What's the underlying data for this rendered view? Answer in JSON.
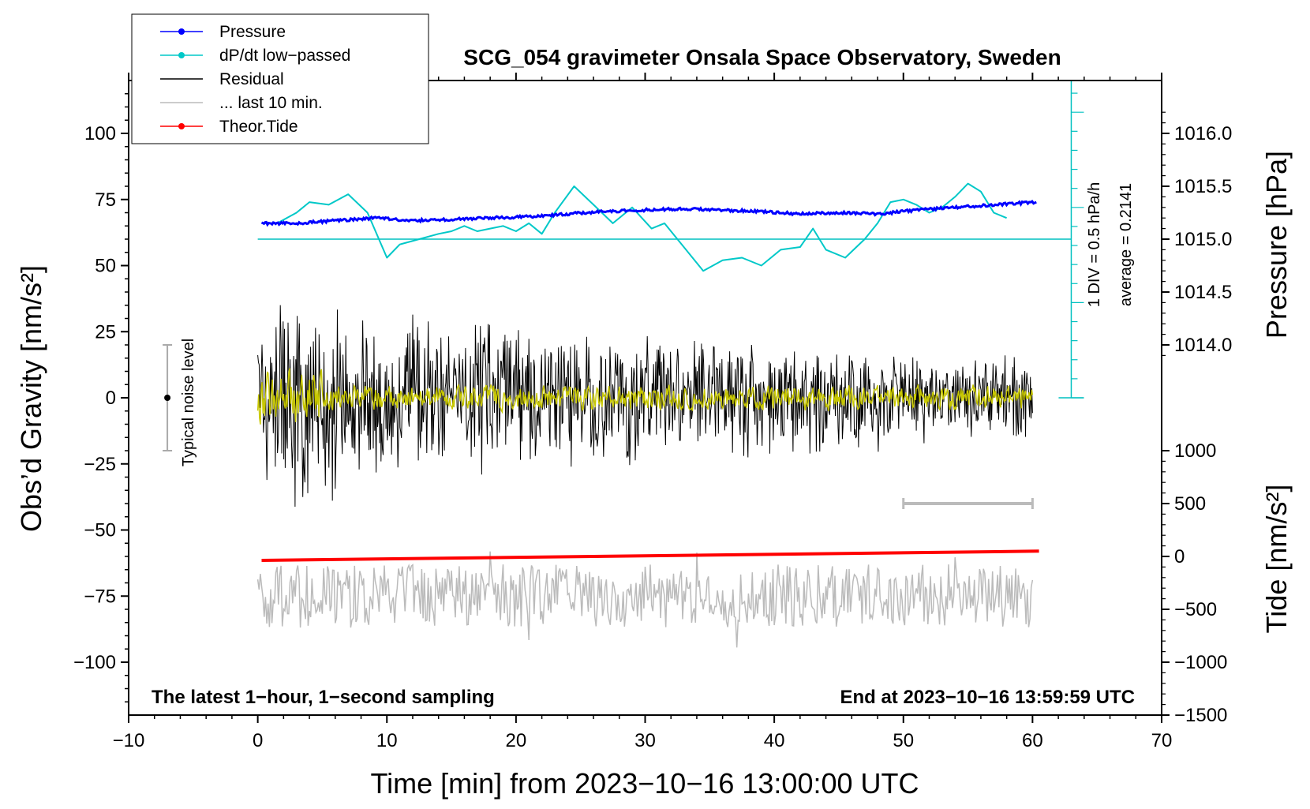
{
  "chart_data": {
    "type": "line",
    "title": "SCG_054 gravimeter Onsala Space Observatory, Sweden",
    "xlabel": "Time [min] from 2023−10−16 13:00:00 UTC",
    "ylabel_left": "Obs’d Gravity [nm/s²]",
    "ylabel_right_top": "Pressure [hPa]",
    "ylabel_right_bottom": "Tide [nm/s²]",
    "xlim": [
      -10,
      70
    ],
    "ylim_left": [
      -120,
      120
    ],
    "x_ticks": [
      -10,
      0,
      10,
      20,
      30,
      40,
      50,
      60,
      70
    ],
    "x_tick_labels": [
      "−10",
      "0",
      "10",
      "20",
      "30",
      "40",
      "50",
      "60",
      "70"
    ],
    "y_left_ticks": [
      100,
      75,
      50,
      25,
      0,
      -25,
      -50,
      -75,
      -100
    ],
    "y_left_tick_labels": [
      "100",
      "75",
      "50",
      "25",
      "0",
      "−25",
      "−50",
      "−75",
      "−100"
    ],
    "pressure_ticks": [
      1016.0,
      1015.5,
      1015.0,
      1014.5,
      1014.0
    ],
    "pressure_tick_labels": [
      "1016.0",
      "1015.5",
      "1015.0",
      "1014.5",
      "1014.0"
    ],
    "pressure_axis_map": {
      "value_a": 1015.0,
      "gravity_a": 60,
      "value_b": 1016.0,
      "gravity_b": 100
    },
    "tide_ticks": [
      1000,
      500,
      0,
      -500,
      -1000,
      -1500
    ],
    "tide_tick_labels": [
      "1000",
      "500",
      "0",
      "−500",
      "−1000",
      "−1500"
    ],
    "tide_axis_map": {
      "value_a": 0,
      "gravity_a": -60,
      "value_b": 1000,
      "gravity_b": -20
    },
    "legend_position": "top-left",
    "legend": [
      {
        "label": "Pressure",
        "color": "#0000ff",
        "marker": "dot"
      },
      {
        "label": "dP/dt low−passed",
        "color": "#00c8c8",
        "marker": "dot"
      },
      {
        "label": "Residual",
        "color": "#000000",
        "marker": "none"
      },
      {
        "label": "... last 10 min.",
        "color": "#bbbbbb",
        "marker": "none"
      },
      {
        "label": "Theor.Tide",
        "color": "#ff0000",
        "marker": "dot"
      }
    ],
    "annotations": {
      "left_info": "The latest 1−hour, 1−second sampling",
      "right_info": "End at 2023−10−16 13:59:59 UTC",
      "noise_label": "Typical noise level",
      "div_label": "1 DIV = 0.5 hPa/h",
      "average_label": "average = 0.2141"
    },
    "noise_bar": {
      "x": -7,
      "center": 0,
      "half_range": 20
    },
    "dpdt_scale_bar": {
      "x": 63,
      "ymin": 0,
      "ymax": 120,
      "baseline": 60,
      "div_gravity": 7.2
    },
    "last10_bar": {
      "x_start": 50,
      "x_end": 60,
      "y": -40
    },
    "series": [
      {
        "name": "Pressure",
        "color": "#0000ff",
        "units": "gravity-scaled",
        "x": [
          0.3,
          3,
          6,
          9,
          12,
          15,
          18,
          21,
          24,
          27,
          30,
          33,
          36,
          39,
          42,
          45,
          48,
          51,
          54,
          57,
          60.3
        ],
        "values": [
          66,
          66,
          67,
          68,
          67,
          67.5,
          68,
          68.5,
          69.5,
          70.5,
          71,
          71.5,
          71,
          70.5,
          69.5,
          70,
          69.5,
          71,
          72,
          73,
          74
        ]
      },
      {
        "name": "dP/dt low-passed",
        "color": "#00c8c8",
        "units": "gravity-scaled",
        "x": [
          0.3,
          1.5,
          3,
          4,
          5.5,
          7,
          8.5,
          10,
          11,
          12.5,
          14,
          15,
          16,
          17,
          18,
          19,
          20,
          21,
          22,
          23,
          24.5,
          26,
          27.5,
          29,
          30.5,
          31.5,
          32.5,
          34.5,
          36,
          37.5,
          39,
          40.5,
          42,
          43,
          44,
          45.5,
          47,
          48,
          49,
          50,
          51,
          52,
          53,
          54,
          55,
          56,
          57,
          58
        ],
        "values": [
          66,
          66,
          70,
          74,
          73,
          77,
          70,
          53,
          58,
          60,
          62,
          63,
          65,
          63,
          64,
          65,
          63,
          66,
          62,
          70,
          80,
          73,
          66,
          72,
          64,
          66,
          60,
          48,
          52,
          53,
          50,
          56,
          57,
          64,
          56,
          53,
          60,
          66,
          74,
          75,
          73,
          70,
          72,
          76,
          81,
          78,
          70,
          68
        ]
      },
      {
        "name": "Residual",
        "color": "#000000",
        "x_range": [
          0,
          60
        ],
        "envelope": [
          {
            "x": 0,
            "half_range": 30
          },
          {
            "x": 4,
            "half_range": 42
          },
          {
            "x": 8,
            "half_range": 28
          },
          {
            "x": 15,
            "half_range": 28
          },
          {
            "x": 30,
            "half_range": 23
          },
          {
            "x": 45,
            "half_range": 19
          },
          {
            "x": 60,
            "half_range": 15
          }
        ]
      },
      {
        "name": "Residual smoothed",
        "color": "#c8c800",
        "x_range": [
          0,
          60
        ],
        "half_range": 6
      },
      {
        "name": "... last 10 min.",
        "color": "#bbbbbb",
        "x_range": [
          0,
          60
        ],
        "center": -75,
        "half_range": 12
      },
      {
        "name": "Theor.Tide",
        "color": "#ff0000",
        "units": "gravity-scaled",
        "x": [
          0.3,
          60.5
        ],
        "values": [
          -61.5,
          -58
        ]
      }
    ]
  }
}
